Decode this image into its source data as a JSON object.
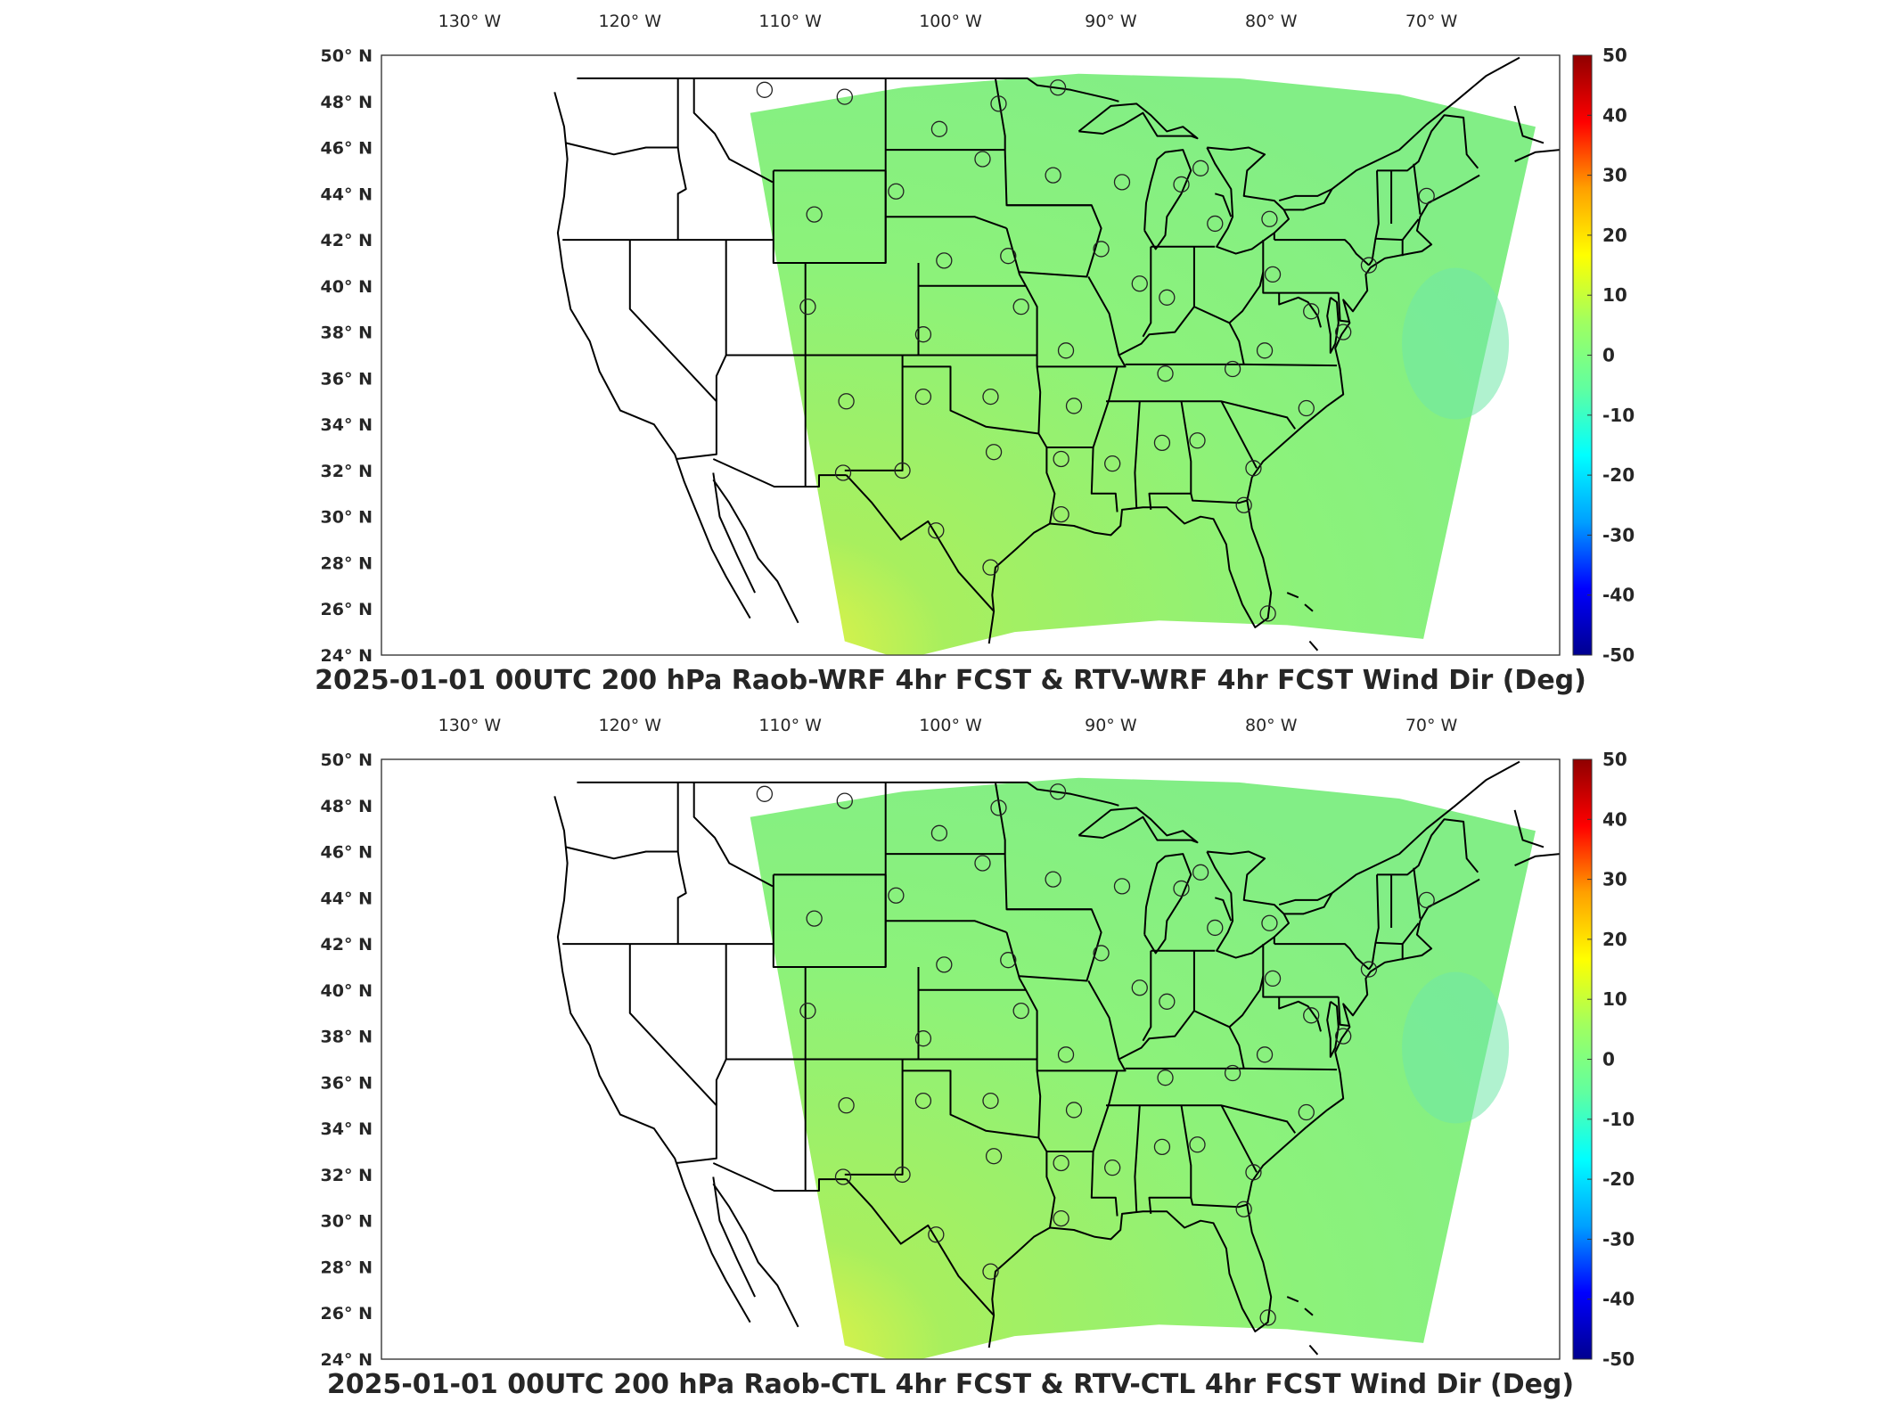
{
  "colorbar": {
    "ticks": [
      "50",
      "40",
      "30",
      "20",
      "10",
      "0",
      "-10",
      "-20",
      "-30",
      "-40",
      "-50"
    ],
    "range": [
      -50,
      50
    ],
    "colormap": "jet",
    "colors": [
      "#00008f",
      "#0000ff",
      "#00a0ff",
      "#00ffff",
      "#60ffa0",
      "#a0ff60",
      "#ffff00",
      "#ffa000",
      "#ff0000",
      "#8f0000"
    ]
  },
  "map": {
    "lon_ticks": [
      "130° W",
      "120° W",
      "110° W",
      "100° W",
      "90° W",
      "80° W",
      "70° W"
    ],
    "lat_ticks": [
      "50° N",
      "48° N",
      "46° N",
      "44° N",
      "42° N",
      "40° N",
      "38° N",
      "36° N",
      "34° N",
      "32° N",
      "30° N",
      "28° N",
      "26° N",
      "24° N"
    ],
    "field_color": "#8cf27a",
    "station_marker": "circle"
  },
  "panels": [
    {
      "title": "2025-01-01 00UTC 200 hPa Raob-WRF 4hr FCST & RTV-WRF 4hr FCST Wind Dir (Deg)"
    },
    {
      "title": "2025-01-01 00UTC 200 hPa Raob-CTL 4hr FCST & RTV-CTL 4hr FCST Wind Dir (Deg)"
    }
  ]
}
